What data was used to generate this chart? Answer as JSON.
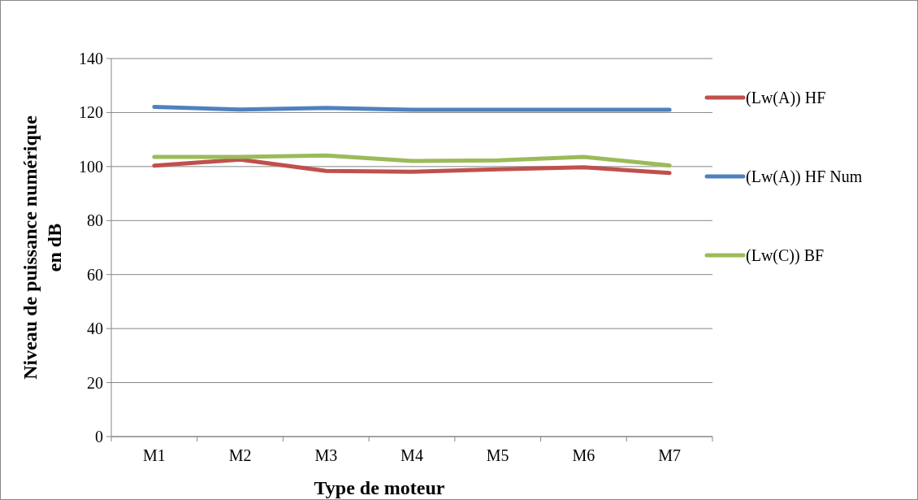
{
  "chart_data": {
    "type": "line",
    "xlabel": "Type de moteur",
    "ylabel": "Niveau de puissance numérique en dB",
    "categories": [
      "M1",
      "M2",
      "M3",
      "M4",
      "M5",
      "M6",
      "M7"
    ],
    "series": [
      {
        "name": "(Lw(A)) HF",
        "color": "#c0504d",
        "values": [
          100.3,
          102.6,
          98.4,
          98.1,
          99,
          99.7,
          97.6
        ]
      },
      {
        "name": "(Lw(A)) HF Num",
        "color": "#4f81bd",
        "values": [
          122.1,
          121.1,
          121.7,
          121,
          121,
          121,
          121
        ]
      },
      {
        "name": "(Lw(C)) BF",
        "color": "#9bbb59",
        "values": [
          103.6,
          103.6,
          104.1,
          102.1,
          102.3,
          103.6,
          100.4
        ]
      }
    ],
    "ylim": [
      0,
      140
    ],
    "yticks": [
      0,
      20,
      40,
      60,
      80,
      100,
      120,
      140
    ],
    "grid": "y",
    "legend": "right",
    "marker": "none",
    "line_style": "solid"
  }
}
